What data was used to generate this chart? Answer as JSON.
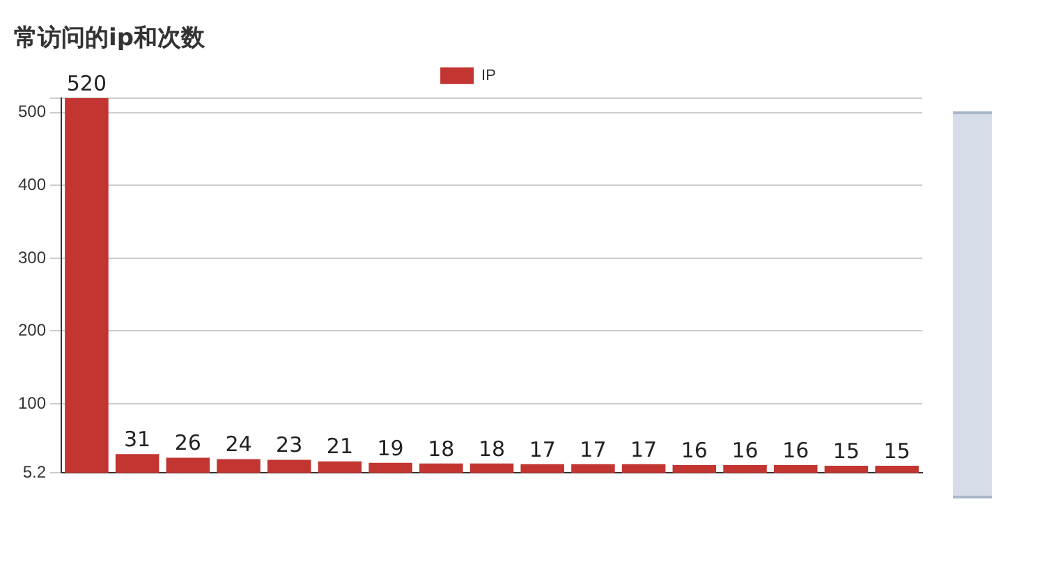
{
  "chart_data": {
    "type": "bar",
    "title": "常访问的ip和次数",
    "categories": [
      null,
      null,
      null,
      null,
      null,
      null,
      null,
      null,
      null,
      null,
      null,
      null,
      null,
      null,
      null,
      null,
      null
    ],
    "series": [
      {
        "name": "IP",
        "color": "#c23531",
        "values": [
          520,
          31,
          26,
          24,
          23,
          21,
          19,
          18,
          18,
          17,
          17,
          17,
          16,
          16,
          16,
          15,
          15
        ]
      }
    ],
    "ylim": [
      5.2,
      520
    ],
    "yticks": [
      5.2,
      100,
      200,
      300,
      400,
      500,
      {
        "value": 520,
        "label": null
      }
    ],
    "grid": "y",
    "legend": "top",
    "data_labels": true
  }
}
